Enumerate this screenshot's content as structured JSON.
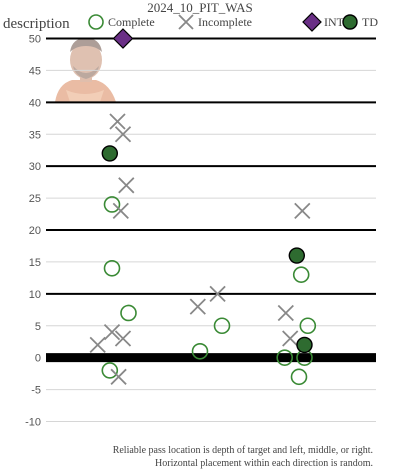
{
  "chart_data": {
    "type": "scatter",
    "title": "2024_10_PIT_WAS",
    "legend": {
      "title": "description",
      "placement": "top",
      "items": [
        {
          "label": "Complete",
          "marker": "open-circle",
          "color": "#3a8a35"
        },
        {
          "label": "Incomplete",
          "marker": "x",
          "color": "#888888"
        },
        {
          "label": "INT",
          "marker": "diamond",
          "color": "#6a2f86"
        },
        {
          "label": "TD",
          "marker": "filled-circle",
          "color": "#2e6b30"
        }
      ]
    },
    "ylim": [
      -10,
      50
    ],
    "yticks": [
      -10,
      -5,
      0,
      5,
      10,
      15,
      20,
      25,
      30,
      35,
      40,
      45,
      50
    ],
    "major_lines": [
      0,
      10,
      20,
      30,
      40,
      50
    ],
    "x_groups": [
      "left",
      "middle",
      "right"
    ],
    "xlim": [
      0.5,
      3.5
    ],
    "series": [
      {
        "name": "Complete",
        "points": [
          {
            "x": 1.1,
            "y": 24
          },
          {
            "x": 1.1,
            "y": 14
          },
          {
            "x": 1.25,
            "y": 7
          },
          {
            "x": 1.08,
            "y": -2
          },
          {
            "x": 1.9,
            "y": 1
          },
          {
            "x": 2.1,
            "y": 5
          },
          {
            "x": 2.82,
            "y": 13
          },
          {
            "x": 2.88,
            "y": 5
          },
          {
            "x": 2.67,
            "y": 0
          },
          {
            "x": 2.85,
            "y": 0
          },
          {
            "x": 2.8,
            "y": -3
          }
        ]
      },
      {
        "name": "Incomplete",
        "points": [
          {
            "x": 1.15,
            "y": 37
          },
          {
            "x": 1.2,
            "y": 35
          },
          {
            "x": 1.23,
            "y": 27
          },
          {
            "x": 1.18,
            "y": 23
          },
          {
            "x": 1.2,
            "y": 3
          },
          {
            "x": 1.1,
            "y": 4
          },
          {
            "x": 0.97,
            "y": 2
          },
          {
            "x": 1.16,
            "y": -3
          },
          {
            "x": 1.88,
            "y": 8
          },
          {
            "x": 2.06,
            "y": 10
          },
          {
            "x": 2.83,
            "y": 23
          },
          {
            "x": 2.68,
            "y": 7
          },
          {
            "x": 2.72,
            "y": 3
          }
        ]
      },
      {
        "name": "INT",
        "points": [
          {
            "x": 1.2,
            "y": 50
          }
        ]
      },
      {
        "name": "TD",
        "points": [
          {
            "x": 1.08,
            "y": 32
          },
          {
            "x": 2.78,
            "y": 16
          },
          {
            "x": 2.85,
            "y": 2
          }
        ]
      }
    ]
  },
  "footnote": {
    "line1": "Reliable pass location is depth of target and left, middle, or right.",
    "line2": "Horizontal placement within each direction is random."
  }
}
